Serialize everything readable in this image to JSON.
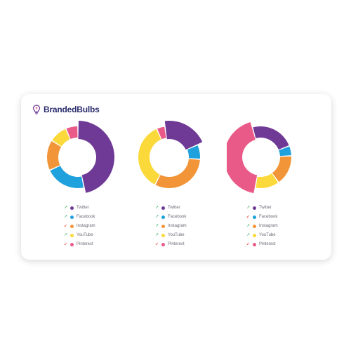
{
  "brand": {
    "name": "BrandedBulbs"
  },
  "chart_data": [
    {
      "type": "pie",
      "variant": "donut",
      "categories": [
        "Twitter",
        "Facebook",
        "Instagram",
        "YouTube",
        "Pinterest"
      ],
      "values": [
        44,
        20,
        15,
        9,
        6
      ],
      "trends": [
        "up",
        "up",
        "down",
        "up",
        "down"
      ]
    },
    {
      "type": "pie",
      "variant": "donut",
      "categories": [
        "Twitter",
        "Facebook",
        "Instagram",
        "YouTube",
        "Pinterest"
      ],
      "values": [
        19,
        7,
        29,
        33,
        4
      ],
      "trends": [
        "up",
        "up",
        "up",
        "up",
        "down"
      ]
    },
    {
      "type": "pie",
      "variant": "donut",
      "categories": [
        "Twitter",
        "Facebook",
        "Instagram",
        "YouTube",
        "Pinterest"
      ],
      "values": [
        22,
        5,
        15,
        12,
        41
      ],
      "trends": [
        "up",
        "down",
        "up",
        "up",
        "down"
      ]
    }
  ],
  "colors": {
    "Twitter": "#6e3a96",
    "Facebook": "#1ea1dc",
    "Instagram": "#f29538",
    "YouTube": "#fbd93a",
    "Pinterest": "#ea5a89",
    "trend_up": "#3aaa5f",
    "trend_down": "#e2473c",
    "brand_text": "#2b2d6e"
  },
  "icons": {
    "brand": "lightbulb-icon",
    "up": "arrow-up-right-icon",
    "down": "arrow-down-left-icon"
  }
}
